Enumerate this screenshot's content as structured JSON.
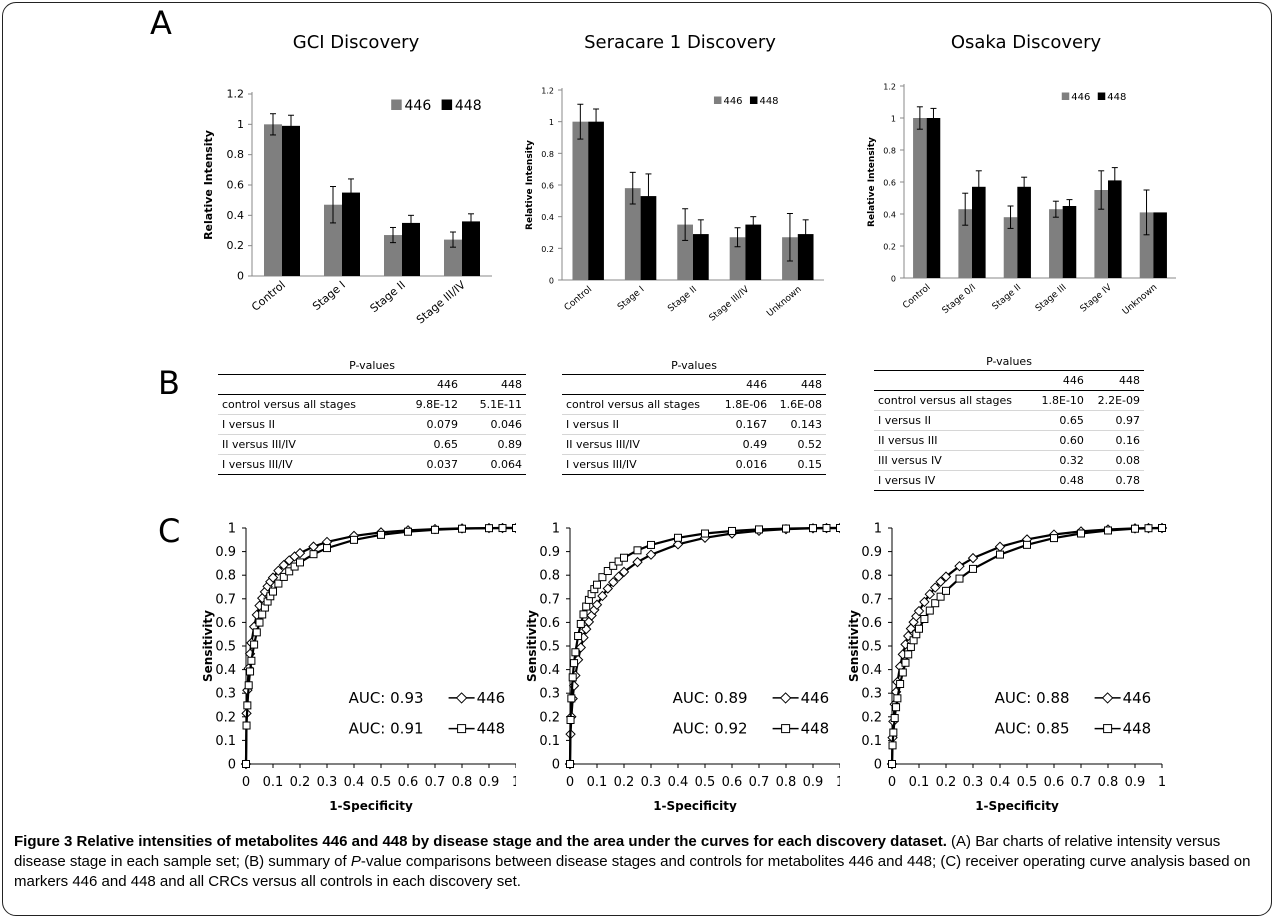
{
  "panel_labels": {
    "a": "A",
    "b": "B",
    "c": "C"
  },
  "colors": {
    "s446": "#7f7f7f",
    "s448": "#000000"
  },
  "chart_data": [
    {
      "id": "bar-gci",
      "type": "bar",
      "title": "GCI Discovery",
      "ylabel": "Relative Intensity",
      "ylim": [
        0,
        1.2
      ],
      "yticks": [
        "0",
        "0.2",
        "0.4",
        "0.6",
        "0.8",
        "1",
        "1.2"
      ],
      "categories": [
        "Control",
        "Stage I",
        "Stage II",
        "Stage III/IV"
      ],
      "legend": "top-right",
      "series": [
        {
          "name": "446",
          "values": [
            1.0,
            0.47,
            0.27,
            0.24
          ],
          "errors": [
            0.07,
            0.12,
            0.05,
            0.05
          ]
        },
        {
          "name": "448",
          "values": [
            0.99,
            0.55,
            0.35,
            0.36
          ],
          "errors": [
            0.07,
            0.09,
            0.05,
            0.05
          ]
        }
      ]
    },
    {
      "id": "bar-seracare",
      "type": "bar",
      "title": "Seracare 1 Discovery",
      "ylabel": "Relative Intensity",
      "ylim": [
        0,
        1.2
      ],
      "yticks": [
        "0",
        "0.2",
        "0.4",
        "0.6",
        "0.8",
        "1",
        "1.2"
      ],
      "categories": [
        "Control",
        "Stage I",
        "Stage II",
        "Stage III/IV",
        "Unknown"
      ],
      "legend": "top-right",
      "series": [
        {
          "name": "446",
          "values": [
            1.0,
            0.58,
            0.35,
            0.27,
            0.27
          ],
          "errors": [
            0.11,
            0.1,
            0.1,
            0.06,
            0.15
          ]
        },
        {
          "name": "448",
          "values": [
            1.0,
            0.53,
            0.29,
            0.35,
            0.29
          ],
          "errors": [
            0.08,
            0.14,
            0.09,
            0.05,
            0.09
          ]
        }
      ]
    },
    {
      "id": "bar-osaka",
      "type": "bar",
      "title": "Osaka Discovery",
      "ylabel": "Relative Intensity",
      "ylim": [
        0,
        1.2
      ],
      "yticks": [
        "0",
        "0.2",
        "0.4",
        "0.6",
        "0.8",
        "1",
        "1.2"
      ],
      "categories": [
        "Control",
        "Stage 0/I",
        "Stage II",
        "Stage III",
        "Stage IV",
        "Unknown"
      ],
      "legend": "top-right",
      "series": [
        {
          "name": "446",
          "values": [
            1.0,
            0.43,
            0.38,
            0.43,
            0.55,
            0.41
          ],
          "errors": [
            0.07,
            0.1,
            0.07,
            0.05,
            0.12,
            0.14
          ]
        },
        {
          "name": "448",
          "values": [
            1.0,
            0.57,
            0.57,
            0.45,
            0.61,
            0.41
          ],
          "errors": [
            0.06,
            0.1,
            0.06,
            0.04,
            0.08,
            0.0
          ]
        }
      ]
    },
    {
      "id": "roc-gci",
      "type": "line",
      "xlabel": "1-Specificity",
      "ylabel": "Sensitivity",
      "xlim": [
        0,
        1
      ],
      "ylim": [
        0,
        1
      ],
      "xticks": [
        "0",
        "0.1",
        "0.2",
        "0.3",
        "0.4",
        "0.5",
        "0.6",
        "0.7",
        "0.8",
        "0.9",
        "1"
      ],
      "yticks": [
        "0",
        "0.1",
        "0.2",
        "0.3",
        "0.4",
        "0.5",
        "0.6",
        "0.7",
        "0.8",
        "0.9",
        "1"
      ],
      "series": [
        {
          "name": "446",
          "auc_label": "AUC: 0.93",
          "auc": 0.93,
          "marker": "diamond"
        },
        {
          "name": "448",
          "auc_label": "AUC: 0.91",
          "auc": 0.91,
          "marker": "square"
        }
      ]
    },
    {
      "id": "roc-seracare",
      "type": "line",
      "xlabel": "1-Specificity",
      "ylabel": "Sensitivity",
      "xlim": [
        0,
        1
      ],
      "ylim": [
        0,
        1
      ],
      "xticks": [
        "0",
        "0.1",
        "0.2",
        "0.3",
        "0.4",
        "0.5",
        "0.6",
        "0.7",
        "0.8",
        "0.9",
        "1"
      ],
      "yticks": [
        "0",
        "0.1",
        "0.2",
        "0.3",
        "0.4",
        "0.5",
        "0.6",
        "0.7",
        "0.8",
        "0.9",
        "1"
      ],
      "series": [
        {
          "name": "446",
          "auc_label": "AUC: 0.89",
          "auc": 0.89,
          "marker": "diamond"
        },
        {
          "name": "448",
          "auc_label": "AUC: 0.92",
          "auc": 0.92,
          "marker": "square"
        }
      ]
    },
    {
      "id": "roc-osaka",
      "type": "line",
      "xlabel": "1-Specificity",
      "ylabel": "Sensitivity",
      "xlim": [
        0,
        1
      ],
      "ylim": [
        0,
        1
      ],
      "xticks": [
        "0",
        "0.1",
        "0.2",
        "0.3",
        "0.4",
        "0.5",
        "0.6",
        "0.7",
        "0.8",
        "0.9",
        "1"
      ],
      "yticks": [
        "0",
        "0.1",
        "0.2",
        "0.3",
        "0.4",
        "0.5",
        "0.6",
        "0.7",
        "0.8",
        "0.9",
        "1"
      ],
      "series": [
        {
          "name": "446",
          "auc_label": "AUC: 0.88",
          "auc": 0.88,
          "marker": "diamond"
        },
        {
          "name": "448",
          "auc_label": "AUC: 0.85",
          "auc": 0.85,
          "marker": "square"
        }
      ]
    }
  ],
  "tables": [
    {
      "caption": "P-values",
      "cols": [
        "446",
        "448"
      ],
      "rows": [
        {
          "label": "control versus all stages",
          "v1": "9.8E-12",
          "v2": "5.1E-11"
        },
        {
          "label": "I versus II",
          "v1": "0.079",
          "v2": "0.046"
        },
        {
          "label": "II versus III/IV",
          "v1": "0.65",
          "v2": "0.89"
        },
        {
          "label": "I versus III/IV",
          "v1": "0.037",
          "v2": "0.064"
        }
      ]
    },
    {
      "caption": "P-values",
      "cols": [
        "446",
        "448"
      ],
      "rows": [
        {
          "label": "control versus all stages",
          "v1": "1.8E-06",
          "v2": "1.6E-08"
        },
        {
          "label": "I versus II",
          "v1": "0.167",
          "v2": "0.143"
        },
        {
          "label": "II versus III/IV",
          "v1": "0.49",
          "v2": "0.52"
        },
        {
          "label": "I versus III/IV",
          "v1": "0.016",
          "v2": "0.15"
        }
      ]
    },
    {
      "caption": "P-values",
      "cols": [
        "446",
        "448"
      ],
      "rows": [
        {
          "label": "control versus all stages",
          "v1": "1.8E-10",
          "v2": "2.2E-09"
        },
        {
          "label": "I versus II",
          "v1": "0.65",
          "v2": "0.97"
        },
        {
          "label": "II versus III",
          "v1": "0.60",
          "v2": "0.16"
        },
        {
          "label": "III versus IV",
          "v1": "0.32",
          "v2": "0.08"
        },
        {
          "label": "I versus IV",
          "v1": "0.48",
          "v2": "0.78"
        }
      ]
    }
  ],
  "caption": {
    "bold": "Figure 3 Relative intensities of metabolites 446 and 448 by disease stage and the area under the curves for each discovery dataset",
    "bold_end": ".",
    "part1": " (A) Bar charts of relative intensity versus disease stage in each sample set; (B) summary of ",
    "italic": "P",
    "part2": "-value comparisons between disease stages and controls for metabolites 446 and 448; (C) receiver operating curve analysis based on markers 446 and 448 and all CRCs versus all controls in each discovery set."
  }
}
